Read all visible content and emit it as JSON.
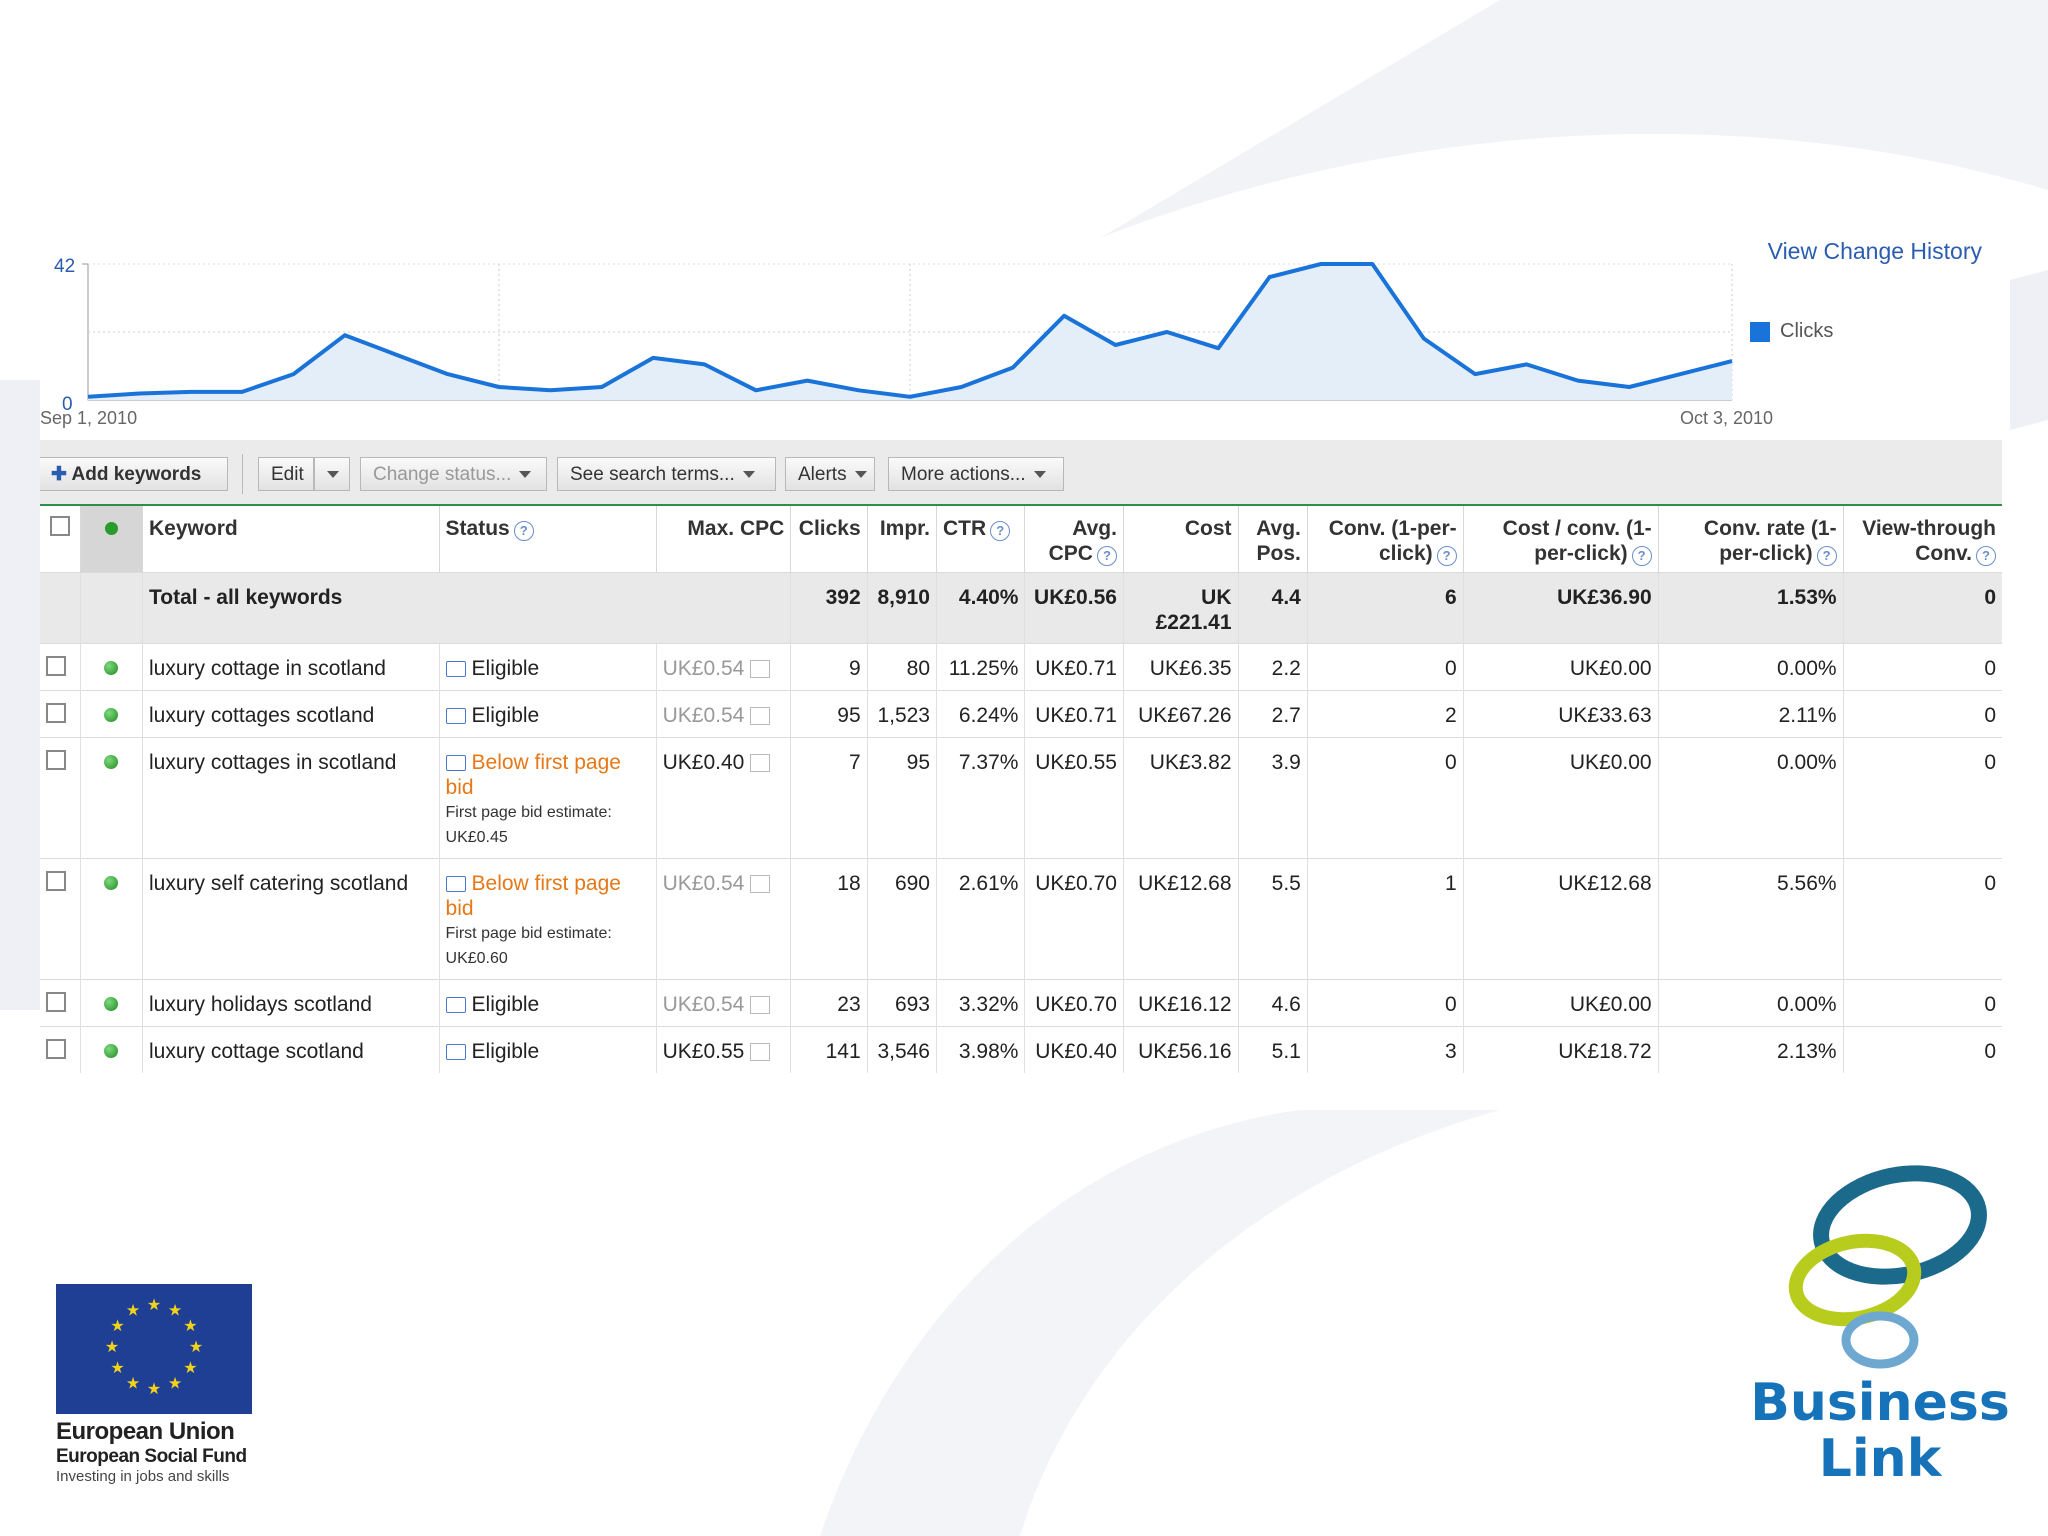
{
  "chart": {
    "y_max_label": "42",
    "y_min_label": "0",
    "x_start_label": "Sep 1, 2010",
    "x_end_label": "Oct 3, 2010",
    "view_change_history": "View Change History",
    "legend_label": "Clicks"
  },
  "chart_data": {
    "type": "area",
    "series": [
      {
        "name": "Clicks",
        "values": [
          1,
          2,
          2.5,
          2.5,
          8,
          20,
          14,
          8,
          4,
          3,
          4,
          13,
          11,
          3,
          6,
          3,
          1,
          4,
          10,
          26,
          17,
          21,
          16,
          38,
          42,
          42,
          19,
          8,
          11,
          6,
          4,
          8,
          12
        ]
      }
    ],
    "x_range": [
      "Sep 1, 2010",
      "Oct 3, 2010"
    ],
    "ylim": [
      0,
      42
    ],
    "grid": true
  },
  "toolbar": {
    "add_keywords": "Add keywords",
    "edit": "Edit",
    "change_status": "Change status...",
    "see_search_terms": "See search terms...",
    "alerts": "Alerts",
    "more_actions": "More actions..."
  },
  "headers": {
    "keyword": "Keyword",
    "status": "Status",
    "max_cpc": "Max. CPC",
    "clicks": "Clicks",
    "impr": "Impr.",
    "ctr": "CTR",
    "avg_cpc": "Avg. CPC",
    "cost": "Cost",
    "avg_pos": "Avg. Pos.",
    "conv": "Conv. (1-per-click)",
    "cost_conv": "Cost / conv. (1-per-click)",
    "conv_rate": "Conv. rate (1-per-click)",
    "view_through": "View-through Conv."
  },
  "total": {
    "label": "Total - all keywords",
    "clicks": "392",
    "impr": "8,910",
    "ctr": "4.40%",
    "avg_cpc": "UK£0.56",
    "cost": "UK £221.41",
    "avg_pos": "4.4",
    "conv": "6",
    "cost_conv": "UK£36.90",
    "conv_rate": "1.53%",
    "view_through": "0"
  },
  "rows": [
    {
      "keyword": "luxury cottage in scotland",
      "status": "Eligible",
      "status_note": "",
      "max_cpc": "UK£0.54",
      "clicks": "9",
      "impr": "80",
      "ctr": "11.25%",
      "avg_cpc": "UK£0.71",
      "cost": "UK£6.35",
      "avg_pos": "2.2",
      "conv": "0",
      "cost_conv": "UK£0.00",
      "conv_rate": "0.00%",
      "view_through": "0"
    },
    {
      "keyword": "luxury cottages scotland",
      "status": "Eligible",
      "status_note": "",
      "max_cpc": "UK£0.54",
      "clicks": "95",
      "impr": "1,523",
      "ctr": "6.24%",
      "avg_cpc": "UK£0.71",
      "cost": "UK£67.26",
      "avg_pos": "2.7",
      "conv": "2",
      "cost_conv": "UK£33.63",
      "conv_rate": "2.11%",
      "view_through": "0"
    },
    {
      "keyword": "luxury cottages in scotland",
      "status": "Below first page bid",
      "status_note": "First page bid estimate: UK£0.45",
      "max_cpc": "UK£0.40",
      "clicks": "7",
      "impr": "95",
      "ctr": "7.37%",
      "avg_cpc": "UK£0.55",
      "cost": "UK£3.82",
      "avg_pos": "3.9",
      "conv": "0",
      "cost_conv": "UK£0.00",
      "conv_rate": "0.00%",
      "view_through": "0"
    },
    {
      "keyword": "luxury self catering scotland",
      "status": "Below first page bid",
      "status_note": "First page bid estimate: UK£0.60",
      "max_cpc": "UK£0.54",
      "clicks": "18",
      "impr": "690",
      "ctr": "2.61%",
      "avg_cpc": "UK£0.70",
      "cost": "UK£12.68",
      "avg_pos": "5.5",
      "conv": "1",
      "cost_conv": "UK£12.68",
      "conv_rate": "5.56%",
      "view_through": "0"
    },
    {
      "keyword": "luxury holidays scotland",
      "status": "Eligible",
      "status_note": "",
      "max_cpc": "UK£0.54",
      "clicks": "23",
      "impr": "693",
      "ctr": "3.32%",
      "avg_cpc": "UK£0.70",
      "cost": "UK£16.12",
      "avg_pos": "4.6",
      "conv": "0",
      "cost_conv": "UK£0.00",
      "conv_rate": "0.00%",
      "view_through": "0"
    },
    {
      "keyword": "luxury cottage scotland",
      "status": "Eligible",
      "status_note": "",
      "max_cpc": "UK£0.55",
      "clicks": "141",
      "impr": "3,546",
      "ctr": "3.98%",
      "avg_cpc": "UK£0.40",
      "cost": "UK£56.16",
      "avg_pos": "5.1",
      "conv": "3",
      "cost_conv": "UK£18.72",
      "conv_rate": "2.13%",
      "view_through": "0"
    }
  ],
  "logos": {
    "eu_line1": "European Union",
    "eu_line2": "European Social Fund",
    "eu_line3": "Investing in jobs and skills",
    "bl_line1": "Business",
    "bl_line2": "Link"
  },
  "colors": {
    "accent": "#1a73d9",
    "warning": "#e67817",
    "eu_blue": "#1f3f94",
    "bl_blue": "#1673b9",
    "bl_green": "#b8cc1e",
    "bl_teal": "#1b6a8c"
  }
}
